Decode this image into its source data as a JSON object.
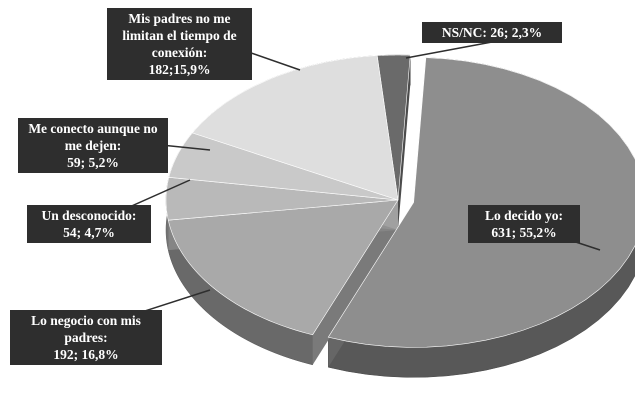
{
  "chart_data": {
    "type": "pie3d",
    "categories": [
      "NS/NC:",
      "Lo decido yo:",
      "Lo negocio con mis padres:",
      "Un desconocido:",
      "Me conecto aunque no me dejen:",
      "Mis padres no me limitan el tiempo de conexión:"
    ],
    "values": [
      26,
      631,
      192,
      54,
      59,
      182
    ],
    "value_labels": [
      "26; ",
      "631; ",
      "192; ",
      "54; ",
      "59; ",
      "182;"
    ],
    "percentages": [
      2.3,
      55.2,
      16.8,
      4.7,
      5.2,
      15.9
    ],
    "percentage_labels": [
      "2,3%",
      "55,2%",
      "16,8%",
      "4,7%",
      "5,2%",
      "15,9%"
    ],
    "colors": [
      "#6a6a6a",
      "#8e8e8e",
      "#a9a9a9",
      "#b9b9b9",
      "#c9c9c9",
      "#dedede"
    ],
    "exploded": [
      1
    ]
  }
}
